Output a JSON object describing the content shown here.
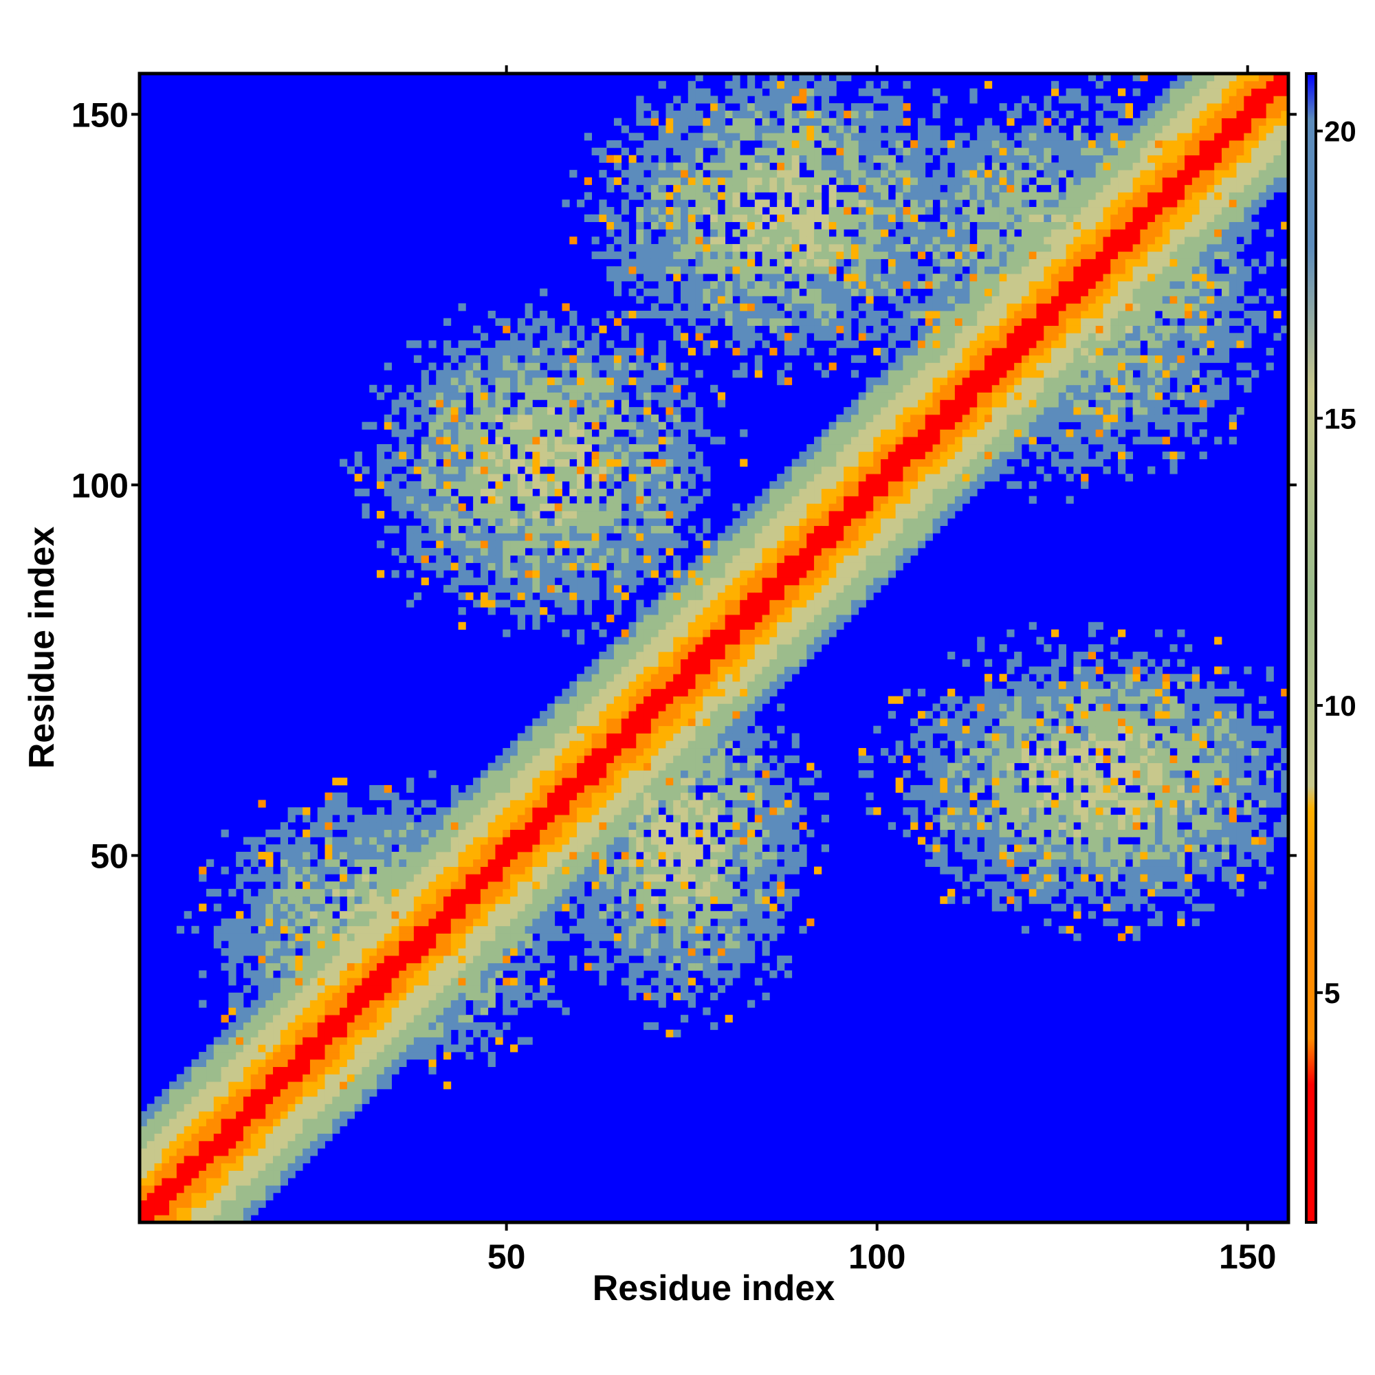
{
  "chart_data": {
    "type": "heatmap",
    "title": "",
    "xlabel": "Residue index",
    "ylabel": "Residue index",
    "n_residues": 155,
    "xlim": [
      1,
      155
    ],
    "ylim": [
      1,
      155
    ],
    "x_ticks": [
      50,
      100,
      150
    ],
    "y_ticks": [
      50,
      100,
      150
    ],
    "x_tick_labels": [
      "50",
      "100",
      "150"
    ],
    "y_tick_labels": [
      "50",
      "100",
      "150"
    ],
    "colorbar": {
      "range": [
        1,
        21
      ],
      "ticks": [
        5,
        10,
        15,
        20
      ],
      "tick_labels": [
        "5",
        "10",
        "15",
        "20"
      ],
      "placement": "right"
    },
    "colors": {
      "background": "#0000ff",
      "c_red": "#ff0000",
      "c_orange": "#ff8c00",
      "c_amber": "#ffb000",
      "c_olive": "#c8c88c",
      "c_sage": "#9cbc8c",
      "c_slate": "#5c8cbc",
      "frame": "#000000"
    },
    "contact_regions": [
      {
        "x": [
          8,
          60
        ],
        "y": [
          20,
          60
        ]
      },
      {
        "x": [
          30,
          80
        ],
        "y": [
          80,
          125
        ]
      },
      {
        "x": [
          60,
          115
        ],
        "y": [
          115,
          158
        ]
      },
      {
        "x": [
          98,
          155
        ],
        "y": [
          100,
          155
        ]
      },
      {
        "x": [
          55,
          92
        ],
        "y": [
          28,
          75
        ]
      },
      {
        "x": [
          100,
          160
        ],
        "y": [
          40,
          80
        ]
      }
    ]
  }
}
